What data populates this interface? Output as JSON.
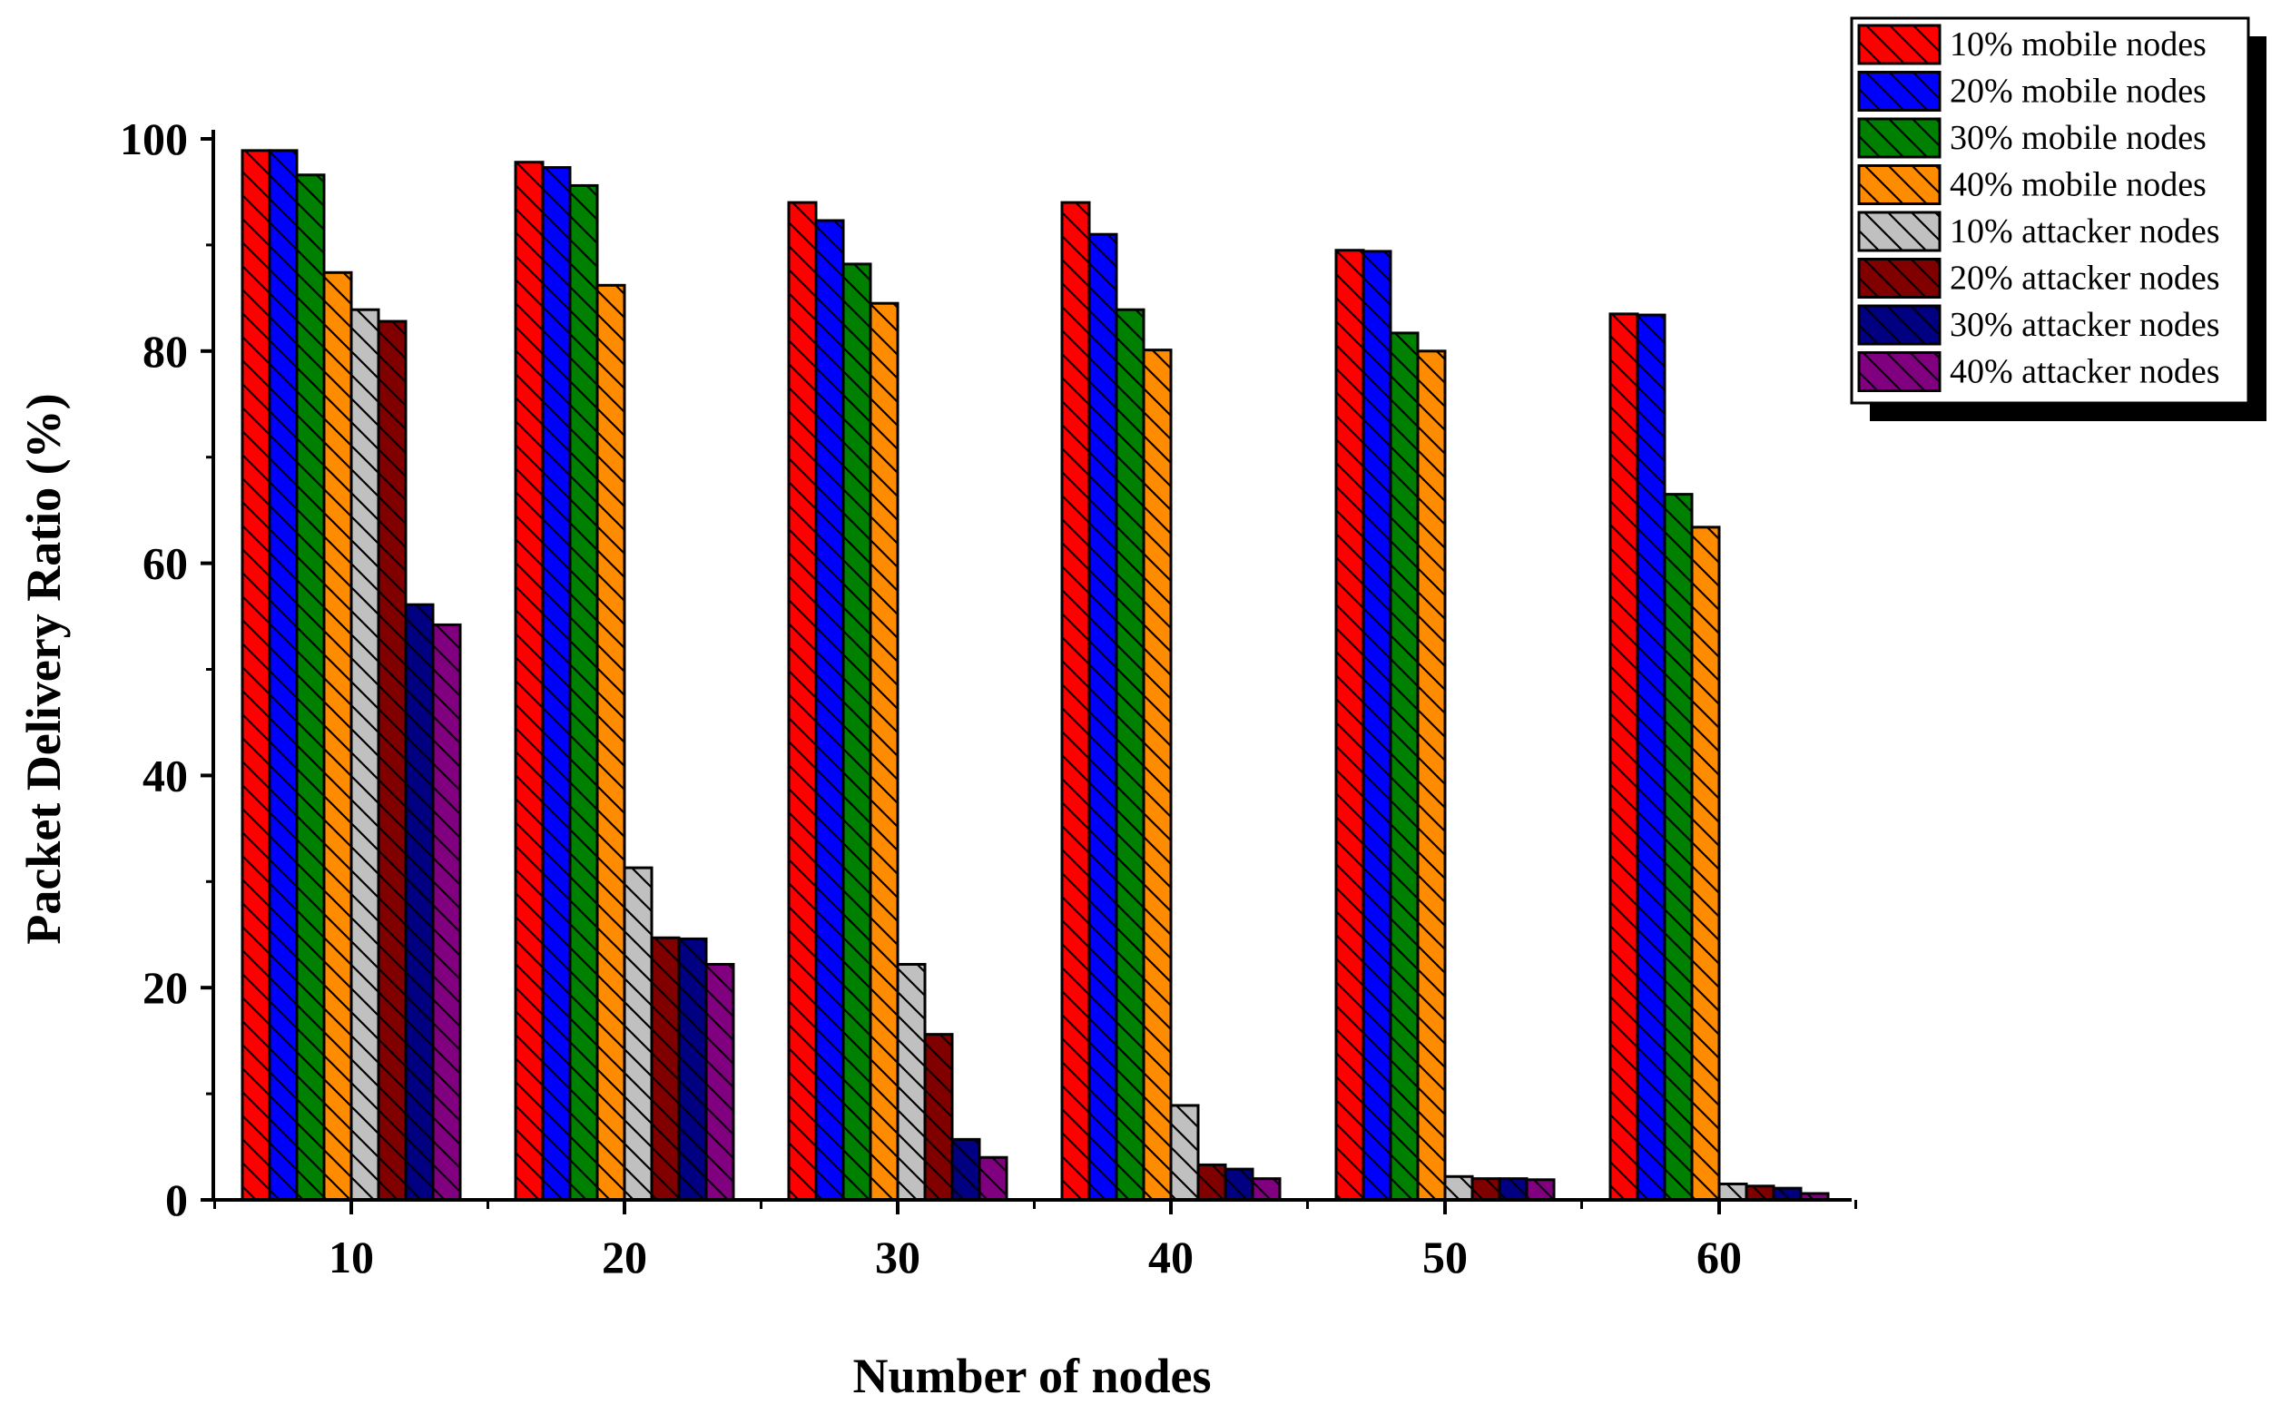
{
  "chart_data": {
    "type": "bar",
    "xlabel": "Number of nodes",
    "ylabel": "Packet Delivery Ratio (%)",
    "ylim": [
      0,
      100
    ],
    "yticks": [
      0,
      20,
      40,
      60,
      80,
      100
    ],
    "categories": [
      "10",
      "20",
      "30",
      "40",
      "50",
      "60"
    ],
    "legend_position": "top-right",
    "bar_pattern": "diagonal-hatch",
    "series": [
      {
        "name": "10% mobile nodes",
        "color": "#ff0000",
        "values": [
          98.9,
          97.8,
          94.0,
          94.0,
          89.5,
          83.5
        ]
      },
      {
        "name": "20% mobile nodes",
        "color": "#0000ff",
        "values": [
          98.9,
          97.3,
          92.3,
          91.0,
          89.4,
          83.4
        ]
      },
      {
        "name": "30% mobile nodes",
        "color": "#008000",
        "values": [
          96.6,
          95.6,
          88.2,
          83.9,
          81.7,
          66.5
        ]
      },
      {
        "name": "40% mobile nodes",
        "color": "#ff8c00",
        "values": [
          87.4,
          86.2,
          84.5,
          80.1,
          80.0,
          63.4
        ]
      },
      {
        "name": "10% attacker nodes",
        "color": "#c0c0c0",
        "values": [
          83.9,
          31.3,
          22.2,
          8.9,
          2.2,
          1.5
        ]
      },
      {
        "name": "20% attacker nodes",
        "color": "#800000",
        "values": [
          82.8,
          24.7,
          15.6,
          3.3,
          2.0,
          1.3
        ]
      },
      {
        "name": "30% attacker nodes",
        "color": "#000080",
        "values": [
          56.1,
          24.6,
          5.7,
          2.9,
          2.0,
          1.1
        ]
      },
      {
        "name": "40% attacker nodes",
        "color": "#800080",
        "values": [
          54.2,
          22.2,
          4.0,
          2.0,
          1.9,
          0.6
        ]
      }
    ]
  }
}
